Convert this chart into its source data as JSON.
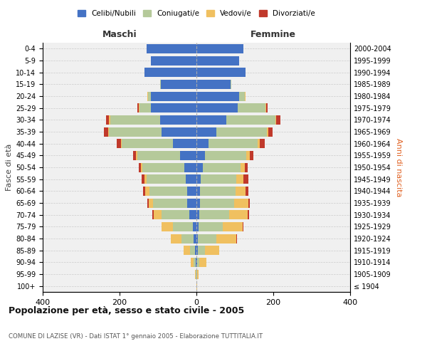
{
  "age_groups": [
    "0-4",
    "5-9",
    "10-14",
    "15-19",
    "20-24",
    "25-29",
    "30-34",
    "35-39",
    "40-44",
    "45-49",
    "50-54",
    "55-59",
    "60-64",
    "65-69",
    "70-74",
    "75-79",
    "80-84",
    "85-89",
    "90-94",
    "95-99",
    "100+"
  ],
  "birth_years": [
    "2000-2004",
    "1995-1999",
    "1990-1994",
    "1985-1989",
    "1980-1984",
    "1975-1979",
    "1970-1974",
    "1965-1969",
    "1960-1964",
    "1955-1959",
    "1950-1954",
    "1945-1949",
    "1940-1944",
    "1935-1939",
    "1930-1934",
    "1925-1929",
    "1920-1924",
    "1915-1919",
    "1910-1914",
    "1905-1909",
    "≤ 1904"
  ],
  "colors": {
    "celibi": "#4472c4",
    "coniugati": "#b5c99a",
    "vedovi": "#f0c060",
    "divorziati": "#c0392b"
  },
  "male": {
    "celibi": [
      130,
      118,
      135,
      92,
      118,
      118,
      95,
      90,
      62,
      42,
      32,
      28,
      25,
      25,
      18,
      10,
      7,
      4,
      2,
      0,
      0
    ],
    "coniugati": [
      0,
      0,
      0,
      2,
      8,
      30,
      130,
      138,
      132,
      112,
      108,
      102,
      98,
      88,
      72,
      52,
      32,
      12,
      5,
      1,
      0
    ],
    "vedovi": [
      0,
      0,
      0,
      0,
      2,
      2,
      3,
      2,
      3,
      3,
      5,
      5,
      10,
      12,
      22,
      28,
      28,
      18,
      7,
      2,
      0
    ],
    "divorziati": [
      0,
      0,
      0,
      0,
      0,
      3,
      8,
      10,
      10,
      8,
      5,
      8,
      5,
      2,
      2,
      0,
      0,
      0,
      0,
      0,
      0
    ]
  },
  "female": {
    "celibi": [
      122,
      112,
      128,
      88,
      112,
      108,
      78,
      52,
      32,
      22,
      16,
      12,
      10,
      10,
      8,
      6,
      4,
      4,
      2,
      0,
      0
    ],
    "coniugati": [
      0,
      0,
      0,
      2,
      14,
      72,
      128,
      132,
      128,
      108,
      98,
      92,
      92,
      88,
      78,
      62,
      48,
      18,
      6,
      1,
      0
    ],
    "vedovi": [
      0,
      0,
      0,
      0,
      2,
      2,
      2,
      3,
      5,
      8,
      12,
      18,
      25,
      38,
      48,
      52,
      52,
      38,
      18,
      4,
      2
    ],
    "divorziati": [
      0,
      0,
      0,
      0,
      0,
      3,
      10,
      12,
      12,
      10,
      8,
      14,
      8,
      3,
      3,
      2,
      2,
      0,
      0,
      0,
      0
    ]
  },
  "xlim": 400,
  "title": "Popolazione per età, sesso e stato civile - 2005",
  "subtitle": "COMUNE DI LAZISE (VR) - Dati ISTAT 1° gennaio 2005 - Elaborazione TUTTITALIA.IT",
  "ylabel_left": "Fasce di età",
  "ylabel_right": "Anni di nascita",
  "legend_labels": [
    "Celibi/Nubili",
    "Coniugati/e",
    "Vedovi/e",
    "Divorziati/e"
  ],
  "background_color": "#f0f0f0"
}
